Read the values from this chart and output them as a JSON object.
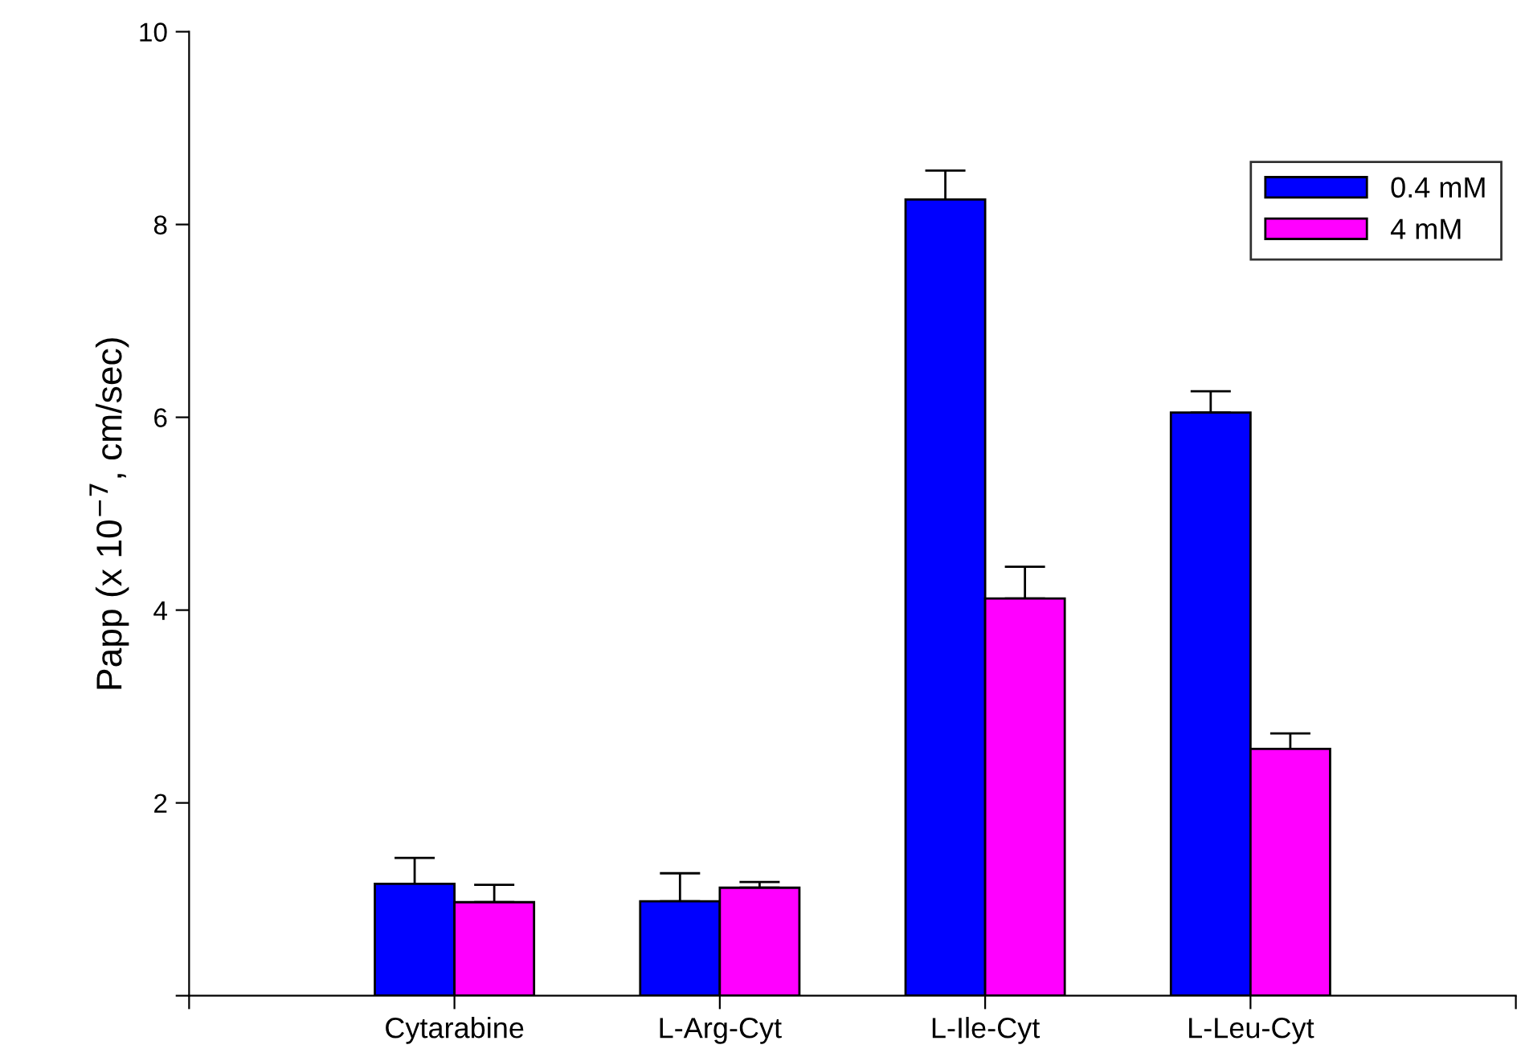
{
  "chart_data": {
    "type": "bar",
    "ylabel": "Papp (x 10$^{−7}$, cm/sec)",
    "categories": [
      "Cytarabine",
      "L-Arg-Cyt",
      "L-Ile-Cyt",
      "L-Leu-Cyt"
    ],
    "series": [
      {
        "name": "0.4 mM",
        "color": "#0000ff",
        "values": [
          1.16,
          0.98,
          8.26,
          6.05
        ],
        "errors": [
          [
            1.16,
            1.43
          ],
          [
            0.98,
            1.27
          ],
          [
            8.26,
            8.56
          ],
          [
            6.05,
            6.27
          ]
        ]
      },
      {
        "name": "4 mM",
        "color": "#ff00ff",
        "values": [
          0.97,
          1.12,
          4.12,
          2.56
        ],
        "errors": [
          [
            0.97,
            1.15
          ],
          [
            1.12,
            1.18
          ],
          [
            4.12,
            4.45
          ],
          [
            2.56,
            2.72
          ]
        ]
      }
    ],
    "ylim": [
      0,
      10
    ],
    "yticks": [
      {
        "value": 0,
        "label": null
      },
      2,
      4,
      6,
      8,
      10
    ],
    "grid": false,
    "legend": "top right"
  }
}
